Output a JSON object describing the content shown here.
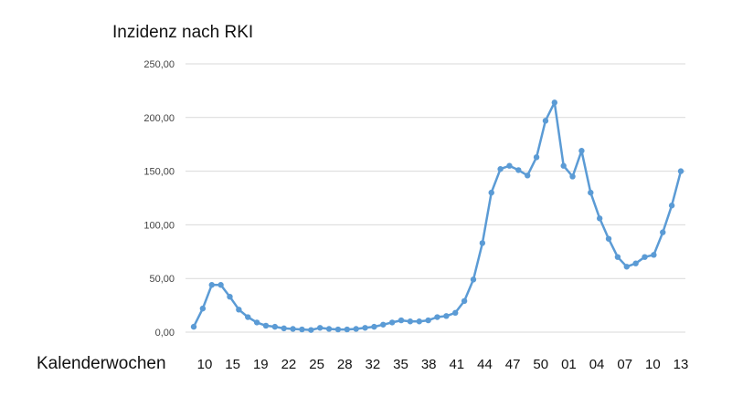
{
  "chart_data": {
    "type": "line",
    "title": "Inzidenz nach RKI",
    "xlabel": "Kalenderwochen",
    "ylabel": "",
    "ylim": [
      0,
      250
    ],
    "yticks": [
      "0,00",
      "50,00",
      "100,00",
      "150,00",
      "200,00",
      "250,00"
    ],
    "xtick_labels": [
      "10",
      "15",
      "19",
      "22",
      "25",
      "28",
      "32",
      "35",
      "38",
      "41",
      "44",
      "47",
      "50",
      "01",
      "04",
      "07",
      "10",
      "13"
    ],
    "grid": true,
    "legend": "none",
    "line_color": "#5b9bd5",
    "series": [
      {
        "values": [
          5,
          22,
          44,
          44,
          33,
          21,
          14,
          9,
          6,
          5,
          3.5,
          3,
          2.5,
          2,
          4,
          3,
          2.5,
          2.5,
          3,
          4,
          5,
          7,
          9,
          11,
          10,
          10,
          11,
          14,
          15,
          18,
          29,
          49,
          83,
          130,
          152,
          155,
          151,
          146,
          163,
          197,
          214,
          155,
          145,
          169,
          130,
          106,
          87,
          70,
          61,
          64,
          70,
          72,
          93,
          118,
          150
        ]
      }
    ]
  }
}
